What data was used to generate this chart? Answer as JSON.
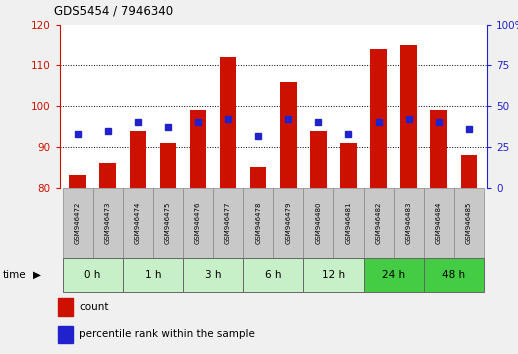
{
  "title": "GDS5454 / 7946340",
  "samples": [
    "GSM946472",
    "GSM946473",
    "GSM946474",
    "GSM946475",
    "GSM946476",
    "GSM946477",
    "GSM946478",
    "GSM946479",
    "GSM946480",
    "GSM946481",
    "GSM946482",
    "GSM946483",
    "GSM946484",
    "GSM946485"
  ],
  "time_groups": [
    {
      "label": "0 h",
      "indices": [
        0,
        1
      ]
    },
    {
      "label": "1 h",
      "indices": [
        2,
        3
      ]
    },
    {
      "label": "3 h",
      "indices": [
        4,
        5
      ]
    },
    {
      "label": "6 h",
      "indices": [
        6,
        7
      ]
    },
    {
      "label": "12 h",
      "indices": [
        8,
        9
      ]
    },
    {
      "label": "24 h",
      "indices": [
        10,
        11
      ]
    },
    {
      "label": "48 h",
      "indices": [
        12,
        13
      ]
    }
  ],
  "group_colors": [
    "#c8f0c8",
    "#c8f0c8",
    "#c8f0c8",
    "#c8f0c8",
    "#c8f0c8",
    "#44cc44",
    "#44cc44"
  ],
  "count_values": [
    83,
    86,
    94,
    91,
    99,
    112,
    85,
    106,
    94,
    91,
    114,
    115,
    99,
    88
  ],
  "percentile_values": [
    33,
    35,
    40,
    37,
    40,
    42,
    32,
    42,
    40,
    33,
    40,
    42,
    40,
    36
  ],
  "baseline": 80,
  "ylim_left": [
    80,
    120
  ],
  "ylim_right": [
    0,
    100
  ],
  "yticks_left": [
    80,
    90,
    100,
    110,
    120
  ],
  "yticks_right": [
    0,
    25,
    50,
    75,
    100
  ],
  "bar_color": "#cc1100",
  "dot_color": "#2222cc",
  "bar_width": 0.55,
  "legend_count": "count",
  "legend_pct": "percentile rank within the sample",
  "tick_color_left": "#cc1100",
  "tick_color_right": "#2222cc",
  "sample_box_color": "#c8c8c8",
  "fig_bg": "#f0f0f0",
  "plot_bg": "#ffffff"
}
